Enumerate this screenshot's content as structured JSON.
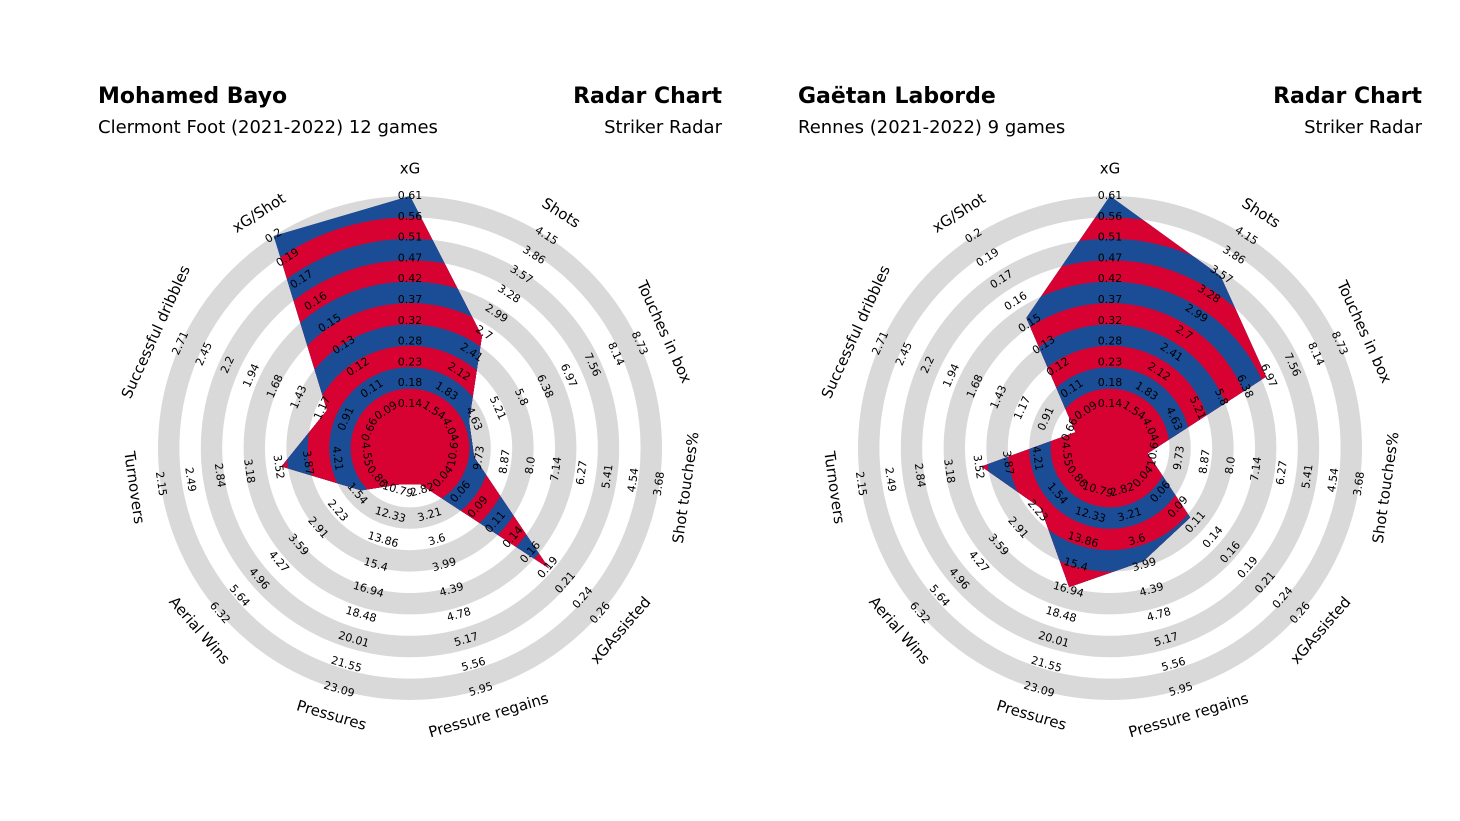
{
  "colors": {
    "accent_red": "#d70232",
    "accent_blue": "#1a4d96",
    "ring_gray": "#d9d9d9",
    "subtitle_gray": "#999999"
  },
  "chart_data": [
    {
      "type": "radar",
      "title": "Mohamed Bayo",
      "subtitle": "Clermont Foot (2021-2022) 12 games",
      "title_right": "Radar Chart",
      "subtitle_right": "Striker Radar",
      "params": [
        "xG",
        "Shots",
        "Touches in box",
        "Shot touches%",
        "xGAssisted",
        "Pressure regains",
        "Pressures",
        "Aerial Wins",
        "Turnovers",
        "Successful dribbles",
        "xG/Shot"
      ],
      "ticks": [
        [
          "0.14",
          "0.18",
          "0.23",
          "0.28",
          "0.32",
          "0.37",
          "0.42",
          "0.47",
          "0.51",
          "0.56",
          "0.61"
        ],
        [
          "1.54",
          "1.83",
          "2.12",
          "2.41",
          "2.7",
          "2.99",
          "3.28",
          "3.57",
          "3.86",
          "4.15"
        ],
        [
          "4.04",
          "4.63",
          "5.21",
          "5.8",
          "6.38",
          "6.97",
          "7.56",
          "8.14",
          "8.73"
        ],
        [
          "10.6",
          "9.73",
          "8.87",
          "8.0",
          "7.14",
          "6.27",
          "5.41",
          "4.54",
          "3.68"
        ],
        [
          "0.04",
          "0.06",
          "0.09",
          "0.11",
          "0.14",
          "0.16",
          "0.19",
          "0.21",
          "0.24",
          "0.26"
        ],
        [
          "2.82",
          "3.21",
          "3.6",
          "3.99",
          "4.39",
          "4.78",
          "5.17",
          "5.56",
          "5.95"
        ],
        [
          "10.79",
          "12.33",
          "13.86",
          "15.4",
          "16.94",
          "18.48",
          "20.01",
          "21.55",
          "23.09"
        ],
        [
          "0.86",
          "1.54",
          "2.23",
          "2.91",
          "3.59",
          "4.27",
          "4.96",
          "5.64",
          "6.32"
        ],
        [
          "4.55",
          "4.21",
          "3.87",
          "3.52",
          "3.18",
          "2.84",
          "2.49",
          "2.15"
        ],
        [
          "0.66",
          "0.91",
          "1.17",
          "1.43",
          "1.68",
          "1.94",
          "2.2",
          "2.45",
          "2.71"
        ],
        [
          "0.09",
          "0.11",
          "0.12",
          "0.13",
          "0.15",
          "0.16",
          "0.17",
          "0.19",
          "0.2"
        ]
      ],
      "values": [
        0.61,
        2.7,
        4.63,
        9.73,
        0.19,
        2.82,
        10.79,
        1.54,
        3.52,
        1.17,
        0.2
      ]
    },
    {
      "type": "radar",
      "title": "Gaëtan Laborde",
      "subtitle": "Rennes (2021-2022) 9 games",
      "title_right": "Radar Chart",
      "subtitle_right": "Striker Radar",
      "params": [
        "xG",
        "Shots",
        "Touches in box",
        "Shot touches%",
        "xGAssisted",
        "Pressure regains",
        "Pressures",
        "Aerial Wins",
        "Turnovers",
        "Successful dribbles",
        "xG/Shot"
      ],
      "ticks": [
        [
          "0.14",
          "0.18",
          "0.23",
          "0.28",
          "0.32",
          "0.37",
          "0.42",
          "0.47",
          "0.51",
          "0.56",
          "0.61"
        ],
        [
          "1.54",
          "1.83",
          "2.12",
          "2.41",
          "2.7",
          "2.99",
          "3.28",
          "3.57",
          "3.86",
          "4.15"
        ],
        [
          "4.04",
          "4.63",
          "5.21",
          "5.8",
          "6.38",
          "6.97",
          "7.56",
          "8.14",
          "8.73"
        ],
        [
          "10.6",
          "9.73",
          "8.87",
          "8.0",
          "7.14",
          "6.27",
          "5.41",
          "4.54",
          "3.68"
        ],
        [
          "0.04",
          "0.06",
          "0.09",
          "0.11",
          "0.14",
          "0.16",
          "0.19",
          "0.21",
          "0.24",
          "0.26"
        ],
        [
          "2.82",
          "3.21",
          "3.6",
          "3.99",
          "4.39",
          "4.78",
          "5.17",
          "5.56",
          "5.95"
        ],
        [
          "10.79",
          "12.33",
          "13.86",
          "15.4",
          "16.94",
          "18.48",
          "20.01",
          "21.55",
          "23.09"
        ],
        [
          "0.86",
          "1.54",
          "2.23",
          "2.91",
          "3.59",
          "4.27",
          "4.96",
          "5.64",
          "6.32"
        ],
        [
          "4.55",
          "4.21",
          "3.87",
          "3.52",
          "3.18",
          "2.84",
          "2.49",
          "2.15"
        ],
        [
          "0.66",
          "0.91",
          "1.17",
          "1.43",
          "1.68",
          "1.94",
          "2.2",
          "2.45",
          "2.71"
        ],
        [
          "0.09",
          "0.11",
          "0.12",
          "0.13",
          "0.15",
          "0.16",
          "0.17",
          "0.19",
          "0.2"
        ]
      ],
      "values": [
        0.61,
        3.57,
        6.97,
        10.6,
        0.11,
        3.99,
        16.94,
        2.23,
        3.52,
        0.66,
        0.15
      ]
    }
  ]
}
